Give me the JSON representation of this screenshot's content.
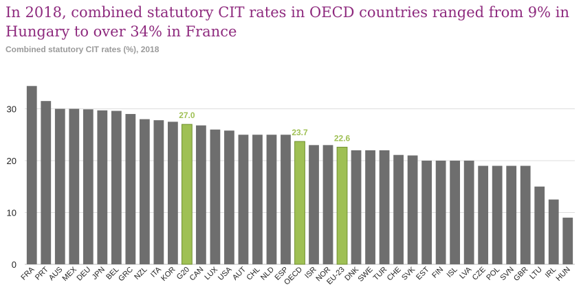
{
  "title": "In 2018, combined statutory CIT rates in OECD countries ranged from 9% in Hungary to over 34% in France",
  "subtitle": "Combined statutory CIT rates (%), 2018",
  "colors": {
    "bar": "#6e6e6e",
    "highlight": "#9fc054",
    "title": "#8e2a7e",
    "grid": "#dddddd"
  },
  "chart_data": {
    "type": "bar",
    "categories": [
      "FRA",
      "PRT",
      "AUS",
      "MEX",
      "DEU",
      "JPN",
      "BEL",
      "GRC",
      "NZL",
      "ITA",
      "KOR",
      "G20",
      "CAN",
      "LUX",
      "USA",
      "AUT",
      "CHL",
      "NLD",
      "ESP",
      "OECD",
      "ISR",
      "NOR",
      "EU-23",
      "DNK",
      "SWE",
      "TUR",
      "CHE",
      "SVK",
      "EST",
      "FIN",
      "ISL",
      "LVA",
      "CZE",
      "POL",
      "SVN",
      "GBR",
      "LTU",
      "IRL",
      "HUN"
    ],
    "values": [
      34.4,
      31.5,
      30.0,
      30.0,
      29.9,
      29.7,
      29.6,
      29.0,
      28.0,
      27.8,
      27.5,
      27.0,
      26.8,
      26.0,
      25.8,
      25.0,
      25.0,
      25.0,
      25.0,
      23.7,
      23.0,
      23.0,
      22.6,
      22.0,
      22.0,
      22.0,
      21.1,
      21.0,
      20.0,
      20.0,
      20.0,
      20.0,
      19.0,
      19.0,
      19.0,
      19.0,
      15.0,
      12.5,
      9.0
    ],
    "highlighted": [
      "G20",
      "OECD",
      "EU-23"
    ],
    "data_labels": [
      {
        "category": "G20",
        "text": "27.0"
      },
      {
        "category": "OECD",
        "text": "23.7"
      },
      {
        "category": "EU-23",
        "text": "22.6"
      }
    ],
    "yticks": [
      0,
      10,
      20,
      30
    ],
    "ylim": [
      0,
      35
    ],
    "grid": true,
    "xlabel": "",
    "ylabel": ""
  }
}
